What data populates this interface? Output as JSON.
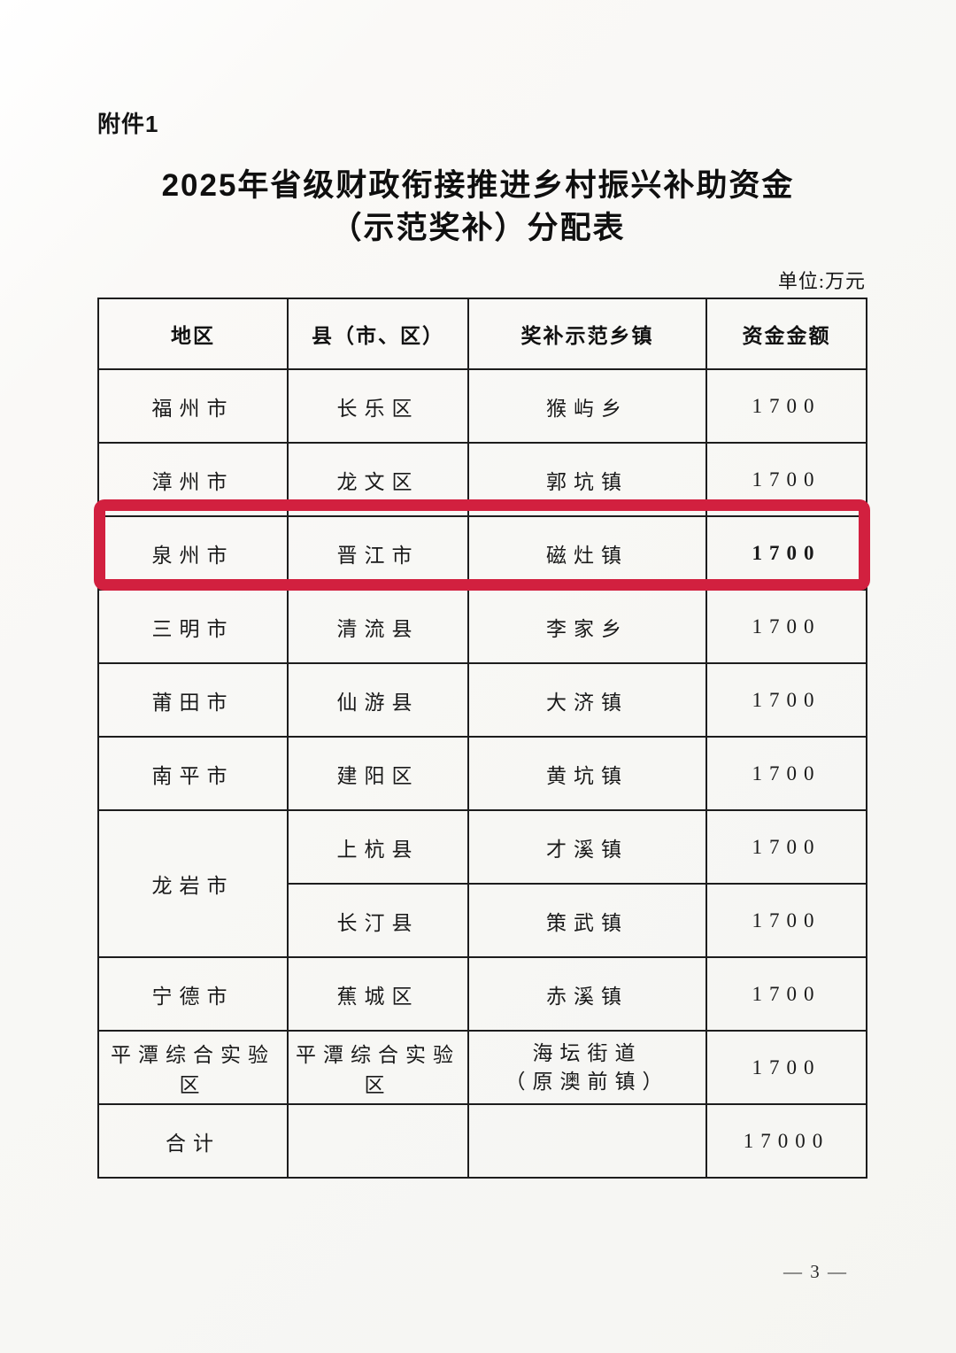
{
  "page": {
    "attachment_label": "附件1",
    "title_line1": "2025年省级财政衔接推进乡村振兴补助资金",
    "title_line2": "（示范奖补）分配表",
    "unit_note": "单位:万元",
    "page_number": "— 3 —",
    "highlight_color": "#d2203f"
  },
  "table": {
    "headers": [
      "地区",
      "县（市、区）",
      "奖补示范乡镇",
      "资金金额"
    ],
    "rows": [
      {
        "region": "福州市",
        "county": "长乐区",
        "town": "猴屿乡",
        "amount": "1700"
      },
      {
        "region": "漳州市",
        "county": "龙文区",
        "town": "郭坑镇",
        "amount": "1700"
      },
      {
        "region": "泉州市",
        "county": "晋江市",
        "town": "磁灶镇",
        "amount": "1700",
        "highlighted": true
      },
      {
        "region": "三明市",
        "county": "清流县",
        "town": "李家乡",
        "amount": "1700"
      },
      {
        "region": "莆田市",
        "county": "仙游县",
        "town": "大济镇",
        "amount": "1700"
      },
      {
        "region": "南平市",
        "county": "建阳区",
        "town": "黄坑镇",
        "amount": "1700"
      },
      {
        "region": "龙岩市",
        "county": "上杭县",
        "town": "才溪镇",
        "amount": "1700"
      },
      {
        "region": "",
        "county": "长汀县",
        "town": "策武镇",
        "amount": "1700"
      },
      {
        "region": "宁德市",
        "county": "蕉城区",
        "town": "赤溪镇",
        "amount": "1700"
      },
      {
        "region": "平潭综合实验区",
        "county": "平潭综合实验区",
        "town": "海坛街道\n（原澳前镇）",
        "amount": "1700"
      },
      {
        "region": "合计",
        "county": "",
        "town": "",
        "amount": "17000"
      }
    ]
  }
}
